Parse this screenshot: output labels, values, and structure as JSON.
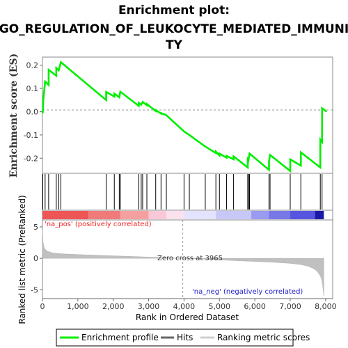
{
  "chart_data": {
    "type": "line",
    "title_line1": "Enrichment plot:",
    "title_line2": "GO_REGULATION_OF_LEUKOCYTE_MEDIATED_IMMUNI",
    "title_line3": "TY",
    "es_ylabel": "Enrichment score (ES)",
    "metric_ylabel": "Ranked list metric (PreRanked)",
    "xlabel": "Rank in Ordered Dataset",
    "xlim": [
      0,
      8200
    ],
    "es_ylim": [
      -0.265,
      0.235
    ],
    "metric_ylim": [
      -6.4,
      6.1
    ],
    "x_ticks": [
      0,
      1000,
      2000,
      3000,
      4000,
      5000,
      6000,
      7000,
      8000
    ],
    "x_tick_labels": [
      "0",
      "1,000",
      "2,000",
      "3,000",
      "4,000",
      "5,000",
      "6,000",
      "7,000",
      "8,000"
    ],
    "es_ticks": [
      0.2,
      0.1,
      0.0,
      -0.1,
      -0.2
    ],
    "es_tick_labels": [
      "0.2",
      "0.1",
      "0.0",
      "-0.1",
      "-0.2"
    ],
    "metric_ticks": [
      5,
      0,
      -5
    ],
    "metric_tick_labels": [
      "5",
      "0",
      "-5"
    ],
    "pos_label": "'na_pos' (positively correlated)",
    "neg_label": "'na_neg' (negatively correlated)",
    "zero_cross_label": "Zero cross at 3965",
    "zero_cross": 3965,
    "total_rank": 7950,
    "hits": [
      10,
      75,
      175,
      390,
      460,
      520,
      1800,
      2030,
      2170,
      2200,
      2720,
      2790,
      2830,
      2950,
      3200,
      3350,
      3500,
      4000,
      4150,
      4600,
      4900,
      5000,
      5200,
      5400,
      5800,
      5820,
      5850,
      6400,
      6430,
      7000,
      7300,
      7850,
      7900
    ],
    "es_curve": [
      [
        0,
        0.0
      ],
      [
        10,
        -0.005
      ],
      [
        20,
        0.045
      ],
      [
        75,
        0.13
      ],
      [
        175,
        0.115
      ],
      [
        176,
        0.18
      ],
      [
        390,
        0.155
      ],
      [
        391,
        0.188
      ],
      [
        460,
        0.178
      ],
      [
        520,
        0.213
      ],
      [
        1800,
        0.05
      ],
      [
        1801,
        0.085
      ],
      [
        2030,
        0.065
      ],
      [
        2031,
        0.078
      ],
      [
        2170,
        0.062
      ],
      [
        2200,
        0.086
      ],
      [
        2720,
        0.025
      ],
      [
        2721,
        0.038
      ],
      [
        2790,
        0.03
      ],
      [
        2830,
        0.042
      ],
      [
        2950,
        0.028
      ],
      [
        2951,
        0.033
      ],
      [
        3200,
        0.003
      ],
      [
        3201,
        0.007
      ],
      [
        3350,
        -0.008
      ],
      [
        3351,
        -0.006
      ],
      [
        3500,
        -0.015
      ],
      [
        4000,
        -0.085
      ],
      [
        4150,
        -0.1
      ],
      [
        4600,
        -0.15
      ],
      [
        4900,
        -0.178
      ],
      [
        4901,
        -0.172
      ],
      [
        5000,
        -0.188
      ],
      [
        5001,
        -0.18
      ],
      [
        5200,
        -0.198
      ],
      [
        5201,
        -0.19
      ],
      [
        5400,
        -0.205
      ],
      [
        5401,
        -0.192
      ],
      [
        5800,
        -0.24
      ],
      [
        5801,
        -0.205
      ],
      [
        5820,
        -0.21
      ],
      [
        5850,
        -0.18
      ],
      [
        6400,
        -0.25
      ],
      [
        6401,
        -0.215
      ],
      [
        6430,
        -0.186
      ],
      [
        7000,
        -0.255
      ],
      [
        7001,
        -0.205
      ],
      [
        7300,
        -0.232
      ],
      [
        7301,
        -0.175
      ],
      [
        7850,
        -0.24
      ],
      [
        7851,
        -0.12
      ],
      [
        7900,
        -0.13
      ],
      [
        7901,
        0.015
      ],
      [
        8030,
        0.0
      ]
    ],
    "metric_curve": [
      [
        0,
        4.6
      ],
      [
        15,
        2.6
      ],
      [
        40,
        1.9
      ],
      [
        80,
        1.4
      ],
      [
        150,
        1.1
      ],
      [
        300,
        0.85
      ],
      [
        600,
        0.7
      ],
      [
        1000,
        0.6
      ],
      [
        1500,
        0.5
      ],
      [
        2000,
        0.4
      ],
      [
        2500,
        0.3
      ],
      [
        3000,
        0.2
      ],
      [
        3500,
        0.1
      ],
      [
        3965,
        0.0
      ],
      [
        4500,
        -0.12
      ],
      [
        5000,
        -0.25
      ],
      [
        5500,
        -0.38
      ],
      [
        6000,
        -0.5
      ],
      [
        6500,
        -0.62
      ],
      [
        7000,
        -0.8
      ],
      [
        7300,
        -1.0
      ],
      [
        7500,
        -1.25
      ],
      [
        7650,
        -1.6
      ],
      [
        7750,
        -2.0
      ],
      [
        7830,
        -2.6
      ],
      [
        7880,
        -3.2
      ],
      [
        7910,
        -4.0
      ],
      [
        7930,
        -5.0
      ],
      [
        7950,
        -6.0
      ]
    ],
    "colors": {
      "es_line": "#00ee00",
      "hit": "#000000",
      "metric_fill": "#c0c0c0",
      "zero_cross_line": "#999999",
      "pos_text": "#ee2222",
      "neg_text": "#2222cc",
      "axis": "#666666",
      "frame": "#888888"
    }
  },
  "legend": {
    "items": [
      {
        "label": "Enrichment profile",
        "color": "#00ee00",
        "kind": "line"
      },
      {
        "label": "Hits",
        "color": "#666666",
        "kind": "line"
      },
      {
        "label": "Ranking metric scores",
        "color": "#c0c0c0",
        "kind": "line"
      }
    ]
  }
}
